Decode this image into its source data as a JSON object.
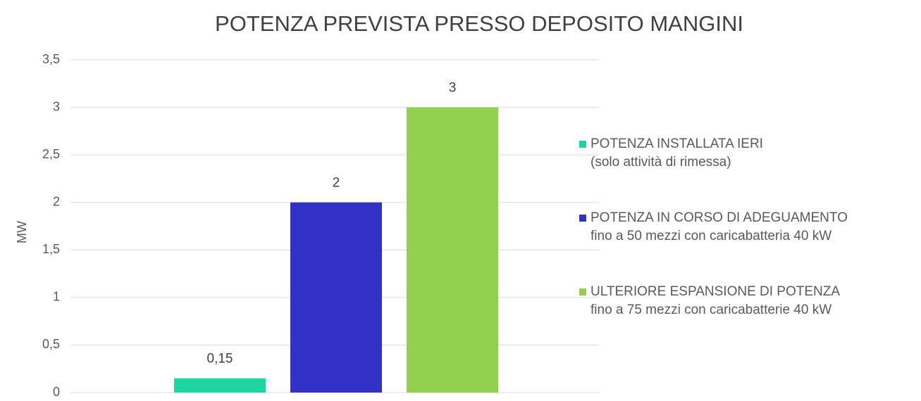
{
  "chart_data": {
    "type": "bar",
    "title": "POTENZA PREVISTA PRESSO DEPOSITO MANGINI",
    "ylabel": "MW",
    "categories": [
      null
    ],
    "series": [
      {
        "name": "POTENZA INSTALLATA IERI",
        "detail": "(solo attività di rimessa)",
        "color": "#1ed5a0",
        "values": [
          0.15
        ],
        "value_labels": [
          "0,15"
        ]
      },
      {
        "name": "POTENZA IN CORSO DI ADEGUAMENTO",
        "detail": "fino a 50 mezzi con caricabatteria 40 kW",
        "color": "#3232c8",
        "values": [
          2
        ]
      },
      {
        "name": "ULTERIORE ESPANSIONE DI POTENZA",
        "detail": "fino a 75 mezzi con caricabatterie 40 kW",
        "color": "#92d050",
        "values": [
          3
        ]
      }
    ],
    "ylim": [
      0,
      3.5
    ],
    "yticks": [
      0,
      {
        "value": 0.5,
        "label": "0,5"
      },
      1,
      {
        "value": 1.5,
        "label": "1,5"
      },
      2,
      {
        "value": 2.5,
        "label": "2,5"
      },
      3,
      {
        "value": 3.5,
        "label": "3,5"
      }
    ],
    "grid": true,
    "legend": "right"
  }
}
